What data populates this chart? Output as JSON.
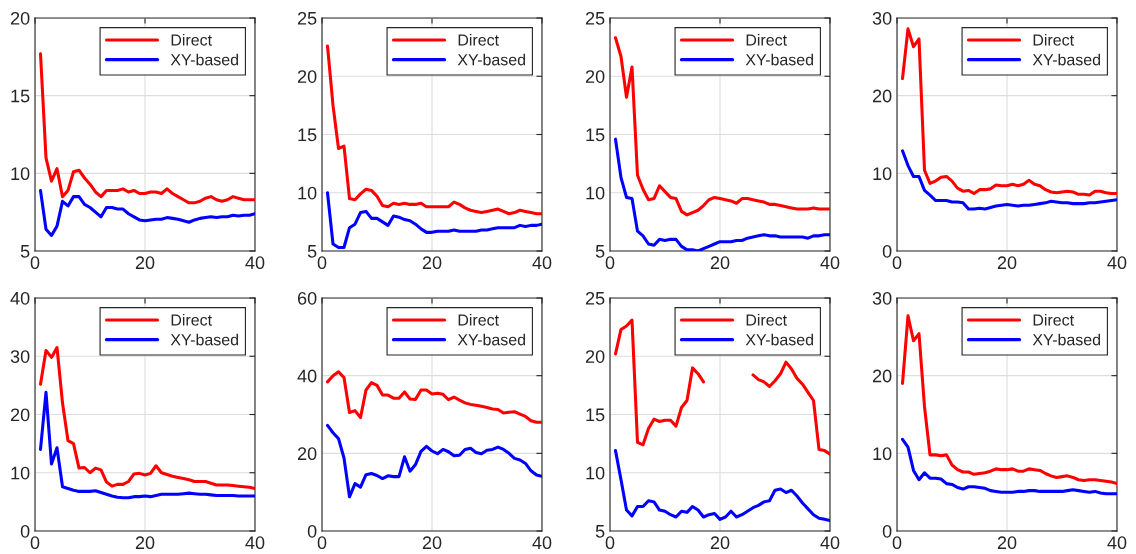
{
  "chart_data": [
    {
      "type": "line",
      "x": [
        1,
        2,
        3,
        4,
        5,
        6,
        7,
        8,
        9,
        10,
        11,
        12,
        13,
        14,
        15,
        16,
        17,
        18,
        19,
        20,
        21,
        22,
        23,
        24,
        25,
        26,
        27,
        28,
        29,
        30,
        31,
        32,
        33,
        34,
        35,
        36,
        37,
        38,
        39,
        40
      ],
      "xlim": [
        0,
        40
      ],
      "xticks": [
        0,
        20,
        40
      ],
      "ylim": [
        5,
        20
      ],
      "yticks": [
        5,
        10,
        15,
        20
      ],
      "grid": true,
      "legend": "top right",
      "line_style": "solid",
      "marker": "none",
      "series": [
        {
          "name": "Direct",
          "color": "#ff0000",
          "values": [
            17.7,
            11,
            9.5,
            10.3,
            8.5,
            8.9,
            10.1,
            10.2,
            9.7,
            9.3,
            8.8,
            8.5,
            8.9,
            8.9,
            8.9,
            9,
            8.8,
            8.9,
            8.7,
            8.7,
            8.8,
            8.8,
            8.7,
            9,
            8.7,
            8.5,
            8.3,
            8.1,
            8.1,
            8.2,
            8.4,
            8.5,
            8.3,
            8.2,
            8.3,
            8.5,
            8.4,
            8.3,
            8.3,
            8.3
          ]
        },
        {
          "name": "XY-based",
          "color": "#0000ff",
          "values": [
            8.9,
            6.4,
            6,
            6.6,
            8.2,
            7.9,
            8.5,
            8.5,
            8,
            7.8,
            7.5,
            7.2,
            7.8,
            7.8,
            7.7,
            7.7,
            7.4,
            7.2,
            7,
            6.95,
            7,
            7.05,
            7.05,
            7.15,
            7.1,
            7.05,
            6.95,
            6.85,
            7,
            7.1,
            7.15,
            7.2,
            7.15,
            7.2,
            7.2,
            7.3,
            7.25,
            7.3,
            7.3,
            7.4
          ]
        }
      ]
    },
    {
      "type": "line",
      "x": [
        1,
        2,
        3,
        4,
        5,
        6,
        7,
        8,
        9,
        10,
        11,
        12,
        13,
        14,
        15,
        16,
        17,
        18,
        19,
        20,
        21,
        22,
        23,
        24,
        25,
        26,
        27,
        28,
        29,
        30,
        31,
        32,
        33,
        34,
        35,
        36,
        37,
        38,
        39,
        40
      ],
      "xlim": [
        0,
        40
      ],
      "xticks": [
        0,
        20,
        40
      ],
      "ylim": [
        5,
        25
      ],
      "yticks": [
        5,
        10,
        15,
        20,
        25
      ],
      "grid": true,
      "legend": "top right",
      "line_style": "solid",
      "marker": "none",
      "series": [
        {
          "name": "Direct",
          "color": "#ff0000",
          "values": [
            22.6,
            17.5,
            13.8,
            14,
            9.5,
            9.4,
            9.9,
            10.3,
            10.2,
            9.7,
            8.9,
            8.8,
            9.1,
            9,
            9.1,
            9,
            9,
            9.1,
            8.8,
            8.8,
            8.8,
            8.8,
            8.8,
            9.2,
            9,
            8.7,
            8.5,
            8.4,
            8.3,
            8.4,
            8.5,
            8.6,
            8.4,
            8.2,
            8.3,
            8.5,
            8.4,
            8.3,
            8.2,
            8.2
          ]
        },
        {
          "name": "XY-based",
          "color": "#0000ff",
          "values": [
            10,
            5.6,
            5.3,
            5.3,
            7,
            7.3,
            8.3,
            8.4,
            7.8,
            7.8,
            7.5,
            7.2,
            8,
            7.9,
            7.7,
            7.6,
            7.3,
            6.9,
            6.6,
            6.6,
            6.7,
            6.7,
            6.7,
            6.8,
            6.7,
            6.7,
            6.7,
            6.7,
            6.8,
            6.8,
            6.9,
            7,
            7,
            7,
            7,
            7.2,
            7.1,
            7.2,
            7.2,
            7.3
          ]
        }
      ]
    },
    {
      "type": "line",
      "x": [
        1,
        2,
        3,
        4,
        5,
        6,
        7,
        8,
        9,
        10,
        11,
        12,
        13,
        14,
        15,
        16,
        17,
        18,
        19,
        20,
        21,
        22,
        23,
        24,
        25,
        26,
        27,
        28,
        29,
        30,
        31,
        32,
        33,
        34,
        35,
        36,
        37,
        38,
        39,
        40
      ],
      "xlim": [
        0,
        40
      ],
      "xticks": [
        0,
        20,
        40
      ],
      "ylim": [
        5,
        25
      ],
      "yticks": [
        5,
        10,
        15,
        20,
        25
      ],
      "grid": true,
      "legend": "top right",
      "line_style": "solid",
      "marker": "none",
      "series": [
        {
          "name": "Direct",
          "color": "#ff0000",
          "values": [
            23.3,
            21.7,
            18.2,
            20.8,
            11.5,
            10.3,
            9.4,
            9.5,
            10.6,
            10.1,
            9.6,
            9.5,
            8.4,
            8.1,
            8.3,
            8.5,
            8.9,
            9.4,
            9.6,
            9.5,
            9.4,
            9.3,
            9.1,
            9.5,
            9.5,
            9.4,
            9.3,
            9.2,
            9,
            9,
            8.9,
            8.8,
            8.7,
            8.6,
            8.6,
            8.6,
            8.7,
            8.6,
            8.6,
            8.6
          ]
        },
        {
          "name": "XY-based",
          "color": "#0000ff",
          "values": [
            14.6,
            11.3,
            9.6,
            9.5,
            6.7,
            6.3,
            5.6,
            5.5,
            6,
            5.9,
            6,
            6,
            5.4,
            5.1,
            5.1,
            5,
            5.2,
            5.4,
            5.6,
            5.8,
            5.8,
            5.8,
            5.9,
            5.9,
            6.1,
            6.2,
            6.3,
            6.4,
            6.3,
            6.3,
            6.2,
            6.2,
            6.2,
            6.2,
            6.2,
            6.1,
            6.3,
            6.3,
            6.4,
            6.4
          ]
        }
      ]
    },
    {
      "type": "line",
      "x": [
        1,
        2,
        3,
        4,
        5,
        6,
        7,
        8,
        9,
        10,
        11,
        12,
        13,
        14,
        15,
        16,
        17,
        18,
        19,
        20,
        21,
        22,
        23,
        24,
        25,
        26,
        27,
        28,
        29,
        30,
        31,
        32,
        33,
        34,
        35,
        36,
        37,
        38,
        39,
        40
      ],
      "xlim": [
        0,
        40
      ],
      "xticks": [
        0,
        20,
        40
      ],
      "ylim": [
        0,
        30
      ],
      "yticks": [
        0,
        10,
        20,
        30
      ],
      "grid": true,
      "legend": "top right",
      "line_style": "solid",
      "marker": "none",
      "series": [
        {
          "name": "Direct",
          "color": "#ff0000",
          "values": [
            22.2,
            28.6,
            26.3,
            27.3,
            10.4,
            8.7,
            9,
            9.5,
            9.6,
            9,
            8.1,
            7.7,
            7.8,
            7.4,
            7.9,
            7.9,
            8,
            8.5,
            8.4,
            8.4,
            8.6,
            8.4,
            8.6,
            9.1,
            8.6,
            8.4,
            7.9,
            7.6,
            7.5,
            7.6,
            7.7,
            7.6,
            7.3,
            7.3,
            7.2,
            7.7,
            7.7,
            7.5,
            7.4,
            7.4
          ]
        },
        {
          "name": "XY-based",
          "color": "#0000ff",
          "values": [
            12.9,
            11,
            9.6,
            9.6,
            7.8,
            7.2,
            6.5,
            6.5,
            6.5,
            6.3,
            6.3,
            6.2,
            5.4,
            5.4,
            5.5,
            5.4,
            5.6,
            5.8,
            5.9,
            6,
            5.9,
            5.8,
            5.9,
            5.9,
            6,
            6.1,
            6.2,
            6.4,
            6.3,
            6.2,
            6.2,
            6.1,
            6.1,
            6.1,
            6.2,
            6.2,
            6.3,
            6.4,
            6.5,
            6.6
          ]
        }
      ]
    },
    {
      "type": "line",
      "x": [
        1,
        2,
        3,
        4,
        5,
        6,
        7,
        8,
        9,
        10,
        11,
        12,
        13,
        14,
        15,
        16,
        17,
        18,
        19,
        20,
        21,
        22,
        23,
        24,
        25,
        26,
        27,
        28,
        29,
        30,
        31,
        32,
        33,
        34,
        35,
        36,
        37,
        38,
        39,
        40
      ],
      "xlim": [
        0,
        40
      ],
      "xticks": [
        0,
        20,
        40
      ],
      "ylim": [
        0,
        40
      ],
      "yticks": [
        0,
        10,
        20,
        30,
        40
      ],
      "grid": true,
      "legend": "top right",
      "line_style": "solid",
      "marker": "none",
      "series": [
        {
          "name": "Direct",
          "color": "#ff0000",
          "values": [
            25.2,
            31,
            29.8,
            31.5,
            22,
            15.5,
            15,
            10.8,
            10.9,
            10,
            10.8,
            10.5,
            8.4,
            7.7,
            8,
            8,
            8.5,
            9.8,
            9.9,
            9.6,
            9.9,
            11.2,
            10,
            9.7,
            9.4,
            9.2,
            9,
            8.8,
            8.5,
            8.5,
            8.5,
            8.2,
            7.9,
            7.9,
            7.9,
            7.8,
            7.7,
            7.6,
            7.5,
            7.3
          ]
        },
        {
          "name": "XY-based",
          "color": "#0000ff",
          "values": [
            14,
            23.8,
            11.5,
            14.3,
            7.6,
            7.3,
            7,
            6.8,
            6.8,
            6.8,
            6.9,
            6.6,
            6.3,
            6,
            5.8,
            5.7,
            5.7,
            5.9,
            5.9,
            6,
            5.9,
            6.1,
            6.3,
            6.3,
            6.3,
            6.3,
            6.4,
            6.5,
            6.4,
            6.3,
            6.3,
            6.2,
            6.1,
            6.1,
            6.1,
            6.1,
            6,
            6,
            6,
            6
          ]
        }
      ]
    },
    {
      "type": "line",
      "x": [
        1,
        2,
        3,
        4,
        5,
        6,
        7,
        8,
        9,
        10,
        11,
        12,
        13,
        14,
        15,
        16,
        17,
        18,
        19,
        20,
        21,
        22,
        23,
        24,
        25,
        26,
        27,
        28,
        29,
        30,
        31,
        32,
        33,
        34,
        35,
        36,
        37,
        38,
        39,
        40
      ],
      "xlim": [
        0,
        40
      ],
      "xticks": [
        0,
        20,
        40
      ],
      "ylim": [
        0,
        60
      ],
      "yticks": [
        0,
        20,
        40,
        60
      ],
      "grid": true,
      "legend": "top right",
      "line_style": "solid",
      "marker": "none",
      "series": [
        {
          "name": "Direct",
          "color": "#ff0000",
          "values": [
            38.4,
            40,
            41,
            39.5,
            30.5,
            31,
            29.2,
            36.3,
            38.2,
            37.5,
            35,
            35,
            34.2,
            34.2,
            35.8,
            34,
            33.9,
            36.3,
            36.3,
            35.3,
            35.5,
            35.2,
            33.8,
            34.5,
            33.7,
            33,
            32.6,
            32.4,
            32.1,
            31.8,
            31.4,
            31.3,
            30.4,
            30.6,
            30.7,
            30.1,
            29.5,
            28.4,
            28,
            28
          ]
        },
        {
          "name": "XY-based",
          "color": "#0000ff",
          "values": [
            27.2,
            25.3,
            23.8,
            18.8,
            8.8,
            12.2,
            11.3,
            14.5,
            14.8,
            14.3,
            13.5,
            14.2,
            14,
            14,
            19.1,
            15.4,
            17.1,
            20.5,
            21.8,
            20.6,
            19.9,
            21,
            20.4,
            19.4,
            19.5,
            21,
            21.3,
            20.2,
            19.9,
            20.8,
            21,
            21.6,
            21,
            20,
            18.7,
            18.3,
            17.4,
            15.5,
            14.4,
            14.1
          ]
        }
      ]
    },
    {
      "type": "line",
      "x": [
        1,
        2,
        3,
        4,
        5,
        6,
        7,
        8,
        9,
        10,
        11,
        12,
        13,
        14,
        15,
        16,
        17,
        18,
        19,
        20,
        21,
        22,
        23,
        24,
        25,
        26,
        27,
        28,
        29,
        30,
        31,
        32,
        33,
        34,
        35,
        36,
        37,
        38,
        39,
        40
      ],
      "xlim": [
        0,
        40
      ],
      "xticks": [
        0,
        20,
        40
      ],
      "ylim": [
        5,
        25
      ],
      "yticks": [
        5,
        10,
        15,
        20,
        25
      ],
      "grid": true,
      "legend": "top right",
      "line_style": "solid",
      "marker": "none",
      "series": [
        {
          "name": "Direct",
          "color": "#ff0000",
          "values": [
            20.2,
            22.3,
            22.6,
            23.1,
            12.6,
            12.4,
            13.8,
            14.6,
            14.4,
            14.5,
            14.5,
            14,
            15.6,
            16.2,
            19,
            18.5,
            17.8,
            null,
            null,
            null,
            null,
            null,
            null,
            null,
            null,
            18.4,
            18,
            17.8,
            17.4,
            17.9,
            18.5,
            19.5,
            18.9,
            18.1,
            17.6,
            16.9,
            16.2,
            12,
            11.9,
            11.6
          ]
        },
        {
          "name": "XY-based",
          "color": "#0000ff",
          "values": [
            11.9,
            9.4,
            6.8,
            6.3,
            7.1,
            7.1,
            7.6,
            7.5,
            6.8,
            6.7,
            6.4,
            6.2,
            6.7,
            6.6,
            7.1,
            6.8,
            6.2,
            6.4,
            6.5,
            6,
            6.2,
            6.7,
            6.2,
            6.4,
            6.7,
            7,
            7.2,
            7.5,
            7.6,
            8.5,
            8.6,
            8.3,
            8.5,
            8,
            7.4,
            6.9,
            6.4,
            6.1,
            6,
            5.9
          ]
        }
      ]
    },
    {
      "type": "line",
      "x": [
        1,
        2,
        3,
        4,
        5,
        6,
        7,
        8,
        9,
        10,
        11,
        12,
        13,
        14,
        15,
        16,
        17,
        18,
        19,
        20,
        21,
        22,
        23,
        24,
        25,
        26,
        27,
        28,
        29,
        30,
        31,
        32,
        33,
        34,
        35,
        36,
        37,
        38,
        39,
        40
      ],
      "xlim": [
        0,
        40
      ],
      "xticks": [
        0,
        20,
        40
      ],
      "ylim": [
        0,
        30
      ],
      "yticks": [
        0,
        10,
        20,
        30
      ],
      "grid": true,
      "legend": "top right",
      "line_style": "solid",
      "marker": "none",
      "series": [
        {
          "name": "Direct",
          "color": "#ff0000",
          "values": [
            19,
            27.7,
            24.5,
            25.4,
            16,
            9.8,
            9.8,
            9.7,
            9.8,
            8.5,
            7.9,
            7.6,
            7.6,
            7.3,
            7.4,
            7.5,
            7.7,
            8,
            7.9,
            7.9,
            8,
            7.7,
            7.7,
            8,
            7.9,
            7.8,
            7.4,
            7.1,
            6.9,
            7,
            7.1,
            6.9,
            6.6,
            6.5,
            6.6,
            6.6,
            6.5,
            6.4,
            6.3,
            6.1
          ]
        },
        {
          "name": "XY-based",
          "color": "#0000ff",
          "values": [
            11.8,
            10.8,
            7.8,
            6.6,
            7.5,
            6.8,
            6.8,
            6.7,
            6.1,
            6,
            5.6,
            5.4,
            5.7,
            5.7,
            5.6,
            5.5,
            5.2,
            5.1,
            5,
            5,
            5,
            5.1,
            5.1,
            5.2,
            5.2,
            5.1,
            5.1,
            5.1,
            5.1,
            5.1,
            5.2,
            5.3,
            5.2,
            5.1,
            5,
            5.1,
            4.9,
            4.8,
            4.8,
            4.8
          ]
        }
      ]
    }
  ]
}
